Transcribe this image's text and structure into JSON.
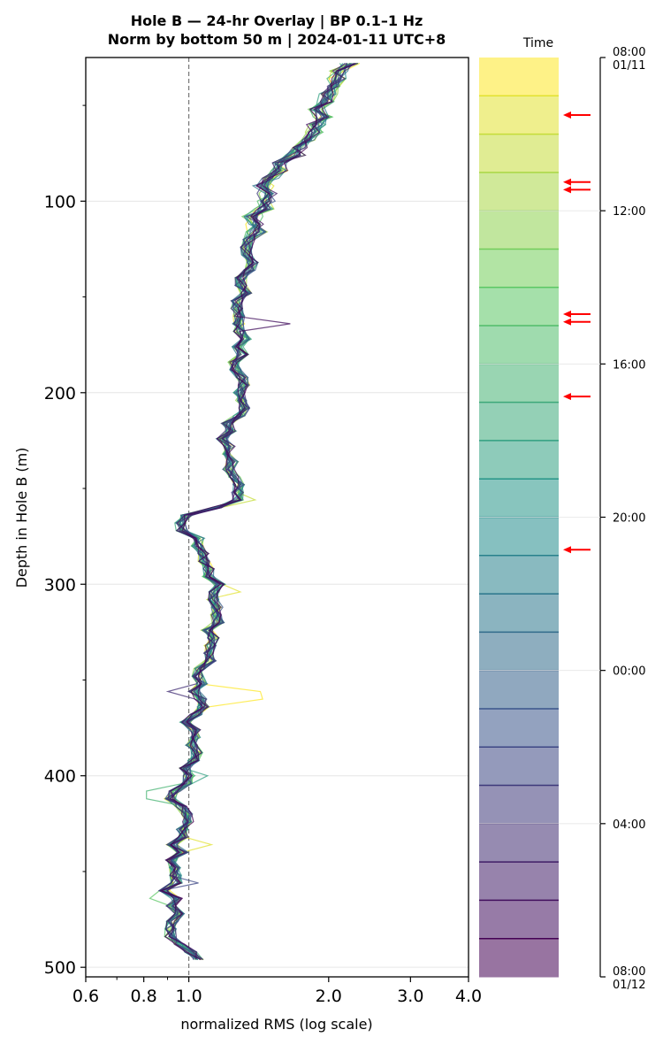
{
  "chart_data": {
    "type": "line",
    "title_lines": [
      "Hole B — 24-hr Overlay  |  BP 0.1–1 Hz",
      "Norm by bottom 50 m  |  2024-01-11 UTC+8"
    ],
    "xlabel": "normalized RMS  (log scale)",
    "ylabel": "Depth in Hole B (m)",
    "x_scale": "log",
    "xlim": [
      0.6,
      4.0
    ],
    "ylim": [
      505,
      25
    ],
    "x_ticks": [
      {
        "value": 0.6,
        "label": "0.6"
      },
      {
        "value": 0.8,
        "label": "0.8"
      },
      {
        "value": 1.0,
        "label": "1.0"
      },
      {
        "value": 2.0,
        "label": "2.0"
      },
      {
        "value": 3.0,
        "label": "3.0"
      },
      {
        "value": 4.0,
        "label": "4.0"
      }
    ],
    "y_ticks": [
      {
        "value": 100,
        "label": "100"
      },
      {
        "value": 200,
        "label": "200"
      },
      {
        "value": 300,
        "label": "300"
      },
      {
        "value": 400,
        "label": "400"
      },
      {
        "value": 500,
        "label": "500"
      }
    ],
    "reference_line_x": 1.0,
    "grid": true,
    "colormap": [
      "#440154",
      "#3b528b",
      "#21918c",
      "#5ec962",
      "#fde725"
    ],
    "n_profiles": 24,
    "depth_profile": [
      [
        28,
        2.2
      ],
      [
        40,
        2.0
      ],
      [
        55,
        1.9
      ],
      [
        70,
        1.75
      ],
      [
        80,
        1.6
      ],
      [
        90,
        1.5
      ],
      [
        100,
        1.42
      ],
      [
        110,
        1.4
      ],
      [
        120,
        1.36
      ],
      [
        130,
        1.34
      ],
      [
        140,
        1.3
      ],
      [
        150,
        1.3
      ],
      [
        160,
        1.3
      ],
      [
        170,
        1.28
      ],
      [
        180,
        1.28
      ],
      [
        190,
        1.26
      ],
      [
        200,
        1.3
      ],
      [
        210,
        1.28
      ],
      [
        220,
        1.22
      ],
      [
        230,
        1.2
      ],
      [
        240,
        1.24
      ],
      [
        250,
        1.3
      ],
      [
        258,
        1.22
      ],
      [
        265,
        0.99
      ],
      [
        270,
        0.97
      ],
      [
        280,
        1.08
      ],
      [
        290,
        1.1
      ],
      [
        300,
        1.14
      ],
      [
        310,
        1.12
      ],
      [
        320,
        1.14
      ],
      [
        330,
        1.12
      ],
      [
        340,
        1.1
      ],
      [
        350,
        1.03
      ],
      [
        360,
        1.06
      ],
      [
        370,
        1.02
      ],
      [
        380,
        1.02
      ],
      [
        390,
        1.02
      ],
      [
        400,
        0.98
      ],
      [
        410,
        0.92
      ],
      [
        420,
        0.98
      ],
      [
        430,
        0.96
      ],
      [
        440,
        0.94
      ],
      [
        450,
        0.95
      ],
      [
        460,
        0.9
      ],
      [
        470,
        0.94
      ],
      [
        480,
        0.92
      ],
      [
        490,
        0.98
      ],
      [
        498,
        1.04
      ]
    ],
    "spikes": [
      {
        "depth": 163,
        "dx": 1.28,
        "profile": 22
      },
      {
        "depth": 255,
        "dx": 1.12,
        "profile": 2
      },
      {
        "depth": 305,
        "dx": 1.14,
        "profile": 1
      },
      {
        "depth": 358,
        "dx": 1.36,
        "profile": 0
      },
      {
        "depth": 357,
        "dx": 0.86,
        "profile": 20
      },
      {
        "depth": 400,
        "dx": 1.12,
        "profile": 10
      },
      {
        "depth": 410,
        "dx": 0.87,
        "profile": 8
      },
      {
        "depth": 435,
        "dx": 1.18,
        "profile": 1
      },
      {
        "depth": 455,
        "dx": 1.14,
        "profile": 18
      },
      {
        "depth": 464,
        "dx": 0.9,
        "profile": 6
      }
    ],
    "colorbar": {
      "label": "Time",
      "ticks": [
        {
          "label_lines": [
            "08:00",
            "01/11"
          ],
          "hours": 0
        },
        {
          "label_lines": [
            "12:00"
          ],
          "hours": 4
        },
        {
          "label_lines": [
            "16:00"
          ],
          "hours": 8
        },
        {
          "label_lines": [
            "20:00"
          ],
          "hours": 12
        },
        {
          "label_lines": [
            "00:00"
          ],
          "hours": 16
        },
        {
          "label_lines": [
            "04:00"
          ],
          "hours": 20
        },
        {
          "label_lines": [
            "08:00",
            "01/12"
          ],
          "hours": 24
        }
      ],
      "arrow_color": "#ff0000",
      "arrows_hours": [
        1.5,
        3.25,
        3.45,
        6.7,
        6.9,
        8.85,
        12.85
      ]
    }
  }
}
